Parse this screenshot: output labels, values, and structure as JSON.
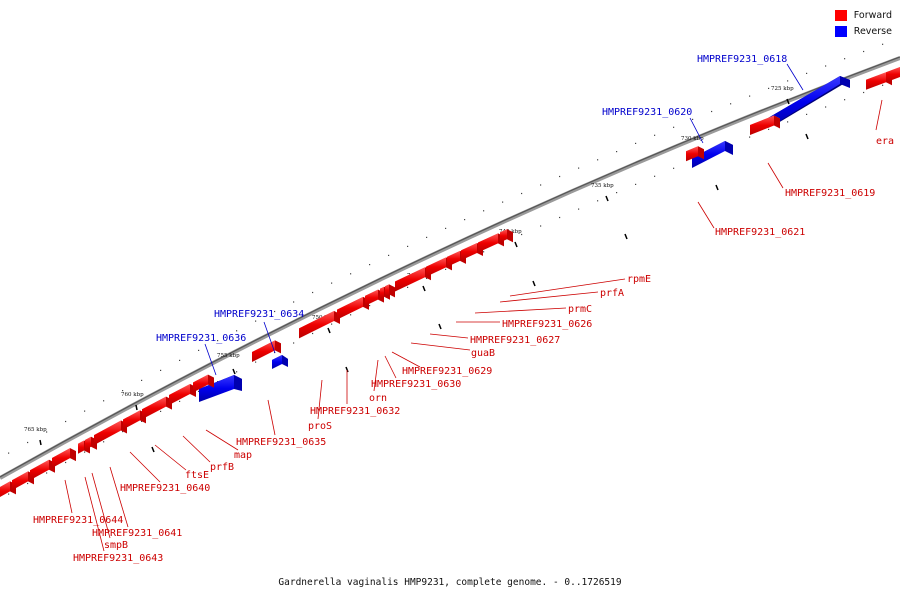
{
  "legend": {
    "forward_label": "Forward",
    "reverse_label": "Reverse",
    "forward_color": "#ff0000",
    "reverse_color": "#0000ff"
  },
  "caption": "Gardnerella vaginalis HMP9231, complete genome. - 0..1726519",
  "ticks": [
    {
      "label": "765 kbp",
      "pos": 765
    },
    {
      "label": "760 kbp",
      "pos": 760
    },
    {
      "label": "755 kbp",
      "pos": 755
    },
    {
      "label": "750 kbp",
      "pos": 750
    },
    {
      "label": "745 kbp",
      "pos": 745
    },
    {
      "label": "740 kbp",
      "pos": 740
    },
    {
      "label": "735 kbp",
      "pos": 735
    },
    {
      "label": "730 kbp",
      "pos": 730
    },
    {
      "label": "725 kbp",
      "pos": 725
    }
  ],
  "genes": [
    {
      "name": "HMPREF9231_0618",
      "strand": "reverse"
    },
    {
      "name": "HMPREF9231_0620",
      "strand": "reverse"
    },
    {
      "name": "HMPREF9231_0634",
      "strand": "reverse"
    },
    {
      "name": "HMPREF9231_0636",
      "strand": "reverse"
    },
    {
      "name": "era",
      "strand": "forward"
    },
    {
      "name": "HMPREF9231_0619",
      "strand": "forward"
    },
    {
      "name": "HMPREF9231_0621",
      "strand": "forward"
    },
    {
      "name": "rpmE",
      "strand": "forward"
    },
    {
      "name": "prfA",
      "strand": "forward"
    },
    {
      "name": "prmC",
      "strand": "forward"
    },
    {
      "name": "HMPREF9231_0626",
      "strand": "forward"
    },
    {
      "name": "HMPREF9231_0627",
      "strand": "forward"
    },
    {
      "name": "guaB",
      "strand": "forward"
    },
    {
      "name": "HMPREF9231_0629",
      "strand": "forward"
    },
    {
      "name": "HMPREF9231_0630",
      "strand": "forward"
    },
    {
      "name": "orn",
      "strand": "forward"
    },
    {
      "name": "HMPREF9231_0632",
      "strand": "forward"
    },
    {
      "name": "proS",
      "strand": "forward"
    },
    {
      "name": "HMPREF9231_0635",
      "strand": "forward"
    },
    {
      "name": "map",
      "strand": "forward"
    },
    {
      "name": "prfB",
      "strand": "forward"
    },
    {
      "name": "ftsE",
      "strand": "forward"
    },
    {
      "name": "HMPREF9231_0640",
      "strand": "forward"
    },
    {
      "name": "HMPREF9231_0641",
      "strand": "forward"
    },
    {
      "name": "smpB",
      "strand": "forward"
    },
    {
      "name": "HMPREF9231_0643",
      "strand": "forward"
    },
    {
      "name": "HMPREF9231_0644",
      "strand": "forward"
    }
  ]
}
